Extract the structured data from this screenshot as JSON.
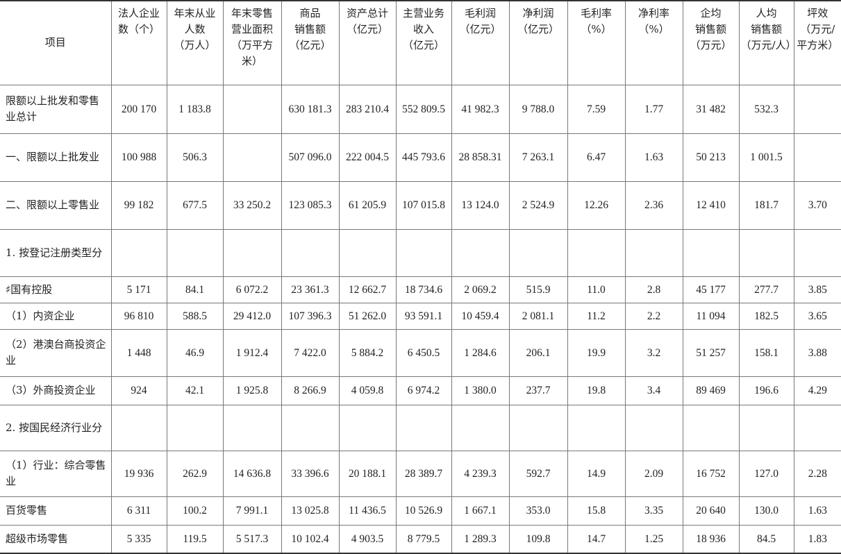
{
  "headers": [
    "项目",
    "法人企业\n数（个）",
    "年末从业\n人数\n（万人）",
    "年末零售\n营业面积\n（万平方\n米）",
    "商品\n销售额\n（亿元）",
    "资产总计\n（亿元）",
    "主营业务\n收入\n（亿元）",
    "毛利润\n（亿元）",
    "净利润\n（亿元）",
    "毛利率\n（%）",
    "净利率\n（%）",
    "企均\n销售额\n（万元）",
    "人均\n销售额\n（万元/人）",
    "坪效\n（万元/\n平方米）"
  ],
  "rows": [
    {
      "label": "限额以上批发和零售业总计",
      "values": [
        "200 170",
        "1 183.8",
        "",
        "630 181.3",
        "283 210.4",
        "552 809.5",
        "41 982.3",
        "9 788.0",
        "7.59",
        "1.77",
        "31 482",
        "532.3",
        ""
      ]
    },
    {
      "label": "一、限额以上批发业",
      "values": [
        "100 988",
        "506.3",
        "",
        "507 096.0",
        "222 004.5",
        "445 793.6",
        "28 858.31",
        "7 263.1",
        "6.47",
        "1.63",
        "50 213",
        "1 001.5",
        ""
      ]
    },
    {
      "label": "二、限额以上零售业",
      "values": [
        "99 182",
        "677.5",
        "33 250.2",
        "123 085.3",
        "61 205.9",
        "107 015.8",
        "13 124.0",
        "2 524.9",
        "12.26",
        "2.36",
        "12 410",
        "181.7",
        "3.70"
      ]
    },
    {
      "label": "1. 按登记注册类型分",
      "values": [
        "",
        "",
        "",
        "",
        "",
        "",
        "",
        "",
        "",
        "",
        "",
        "",
        ""
      ]
    },
    {
      "label": "♯国有控股",
      "values": [
        "5 171",
        "84.1",
        "6 072.2",
        "23 361.3",
        "12 662.7",
        "18 734.6",
        "2 069.2",
        "515.9",
        "11.0",
        "2.8",
        "45 177",
        "277.7",
        "3.85"
      ]
    },
    {
      "label": "（1）内资企业",
      "values": [
        "96 810",
        "588.5",
        "29 412.0",
        "107 396.3",
        "51 262.0",
        "93 591.1",
        "10 459.4",
        "2 081.1",
        "11.2",
        "2.2",
        "11 094",
        "182.5",
        "3.65"
      ]
    },
    {
      "label": "（2）港澳台商投资企业",
      "values": [
        "1 448",
        "46.9",
        "1 912.4",
        "7 422.0",
        "5 884.2",
        "6 450.5",
        "1 284.6",
        "206.1",
        "19.9",
        "3.2",
        "51 257",
        "158.1",
        "3.88"
      ]
    },
    {
      "label": "（3）外商投资企业",
      "values": [
        "924",
        "42.1",
        "1 925.8",
        "8 266.9",
        "4 059.8",
        "6 974.2",
        "1 380.0",
        "237.7",
        "19.8",
        "3.4",
        "89 469",
        "196.6",
        "4.29"
      ]
    },
    {
      "label": "2. 按国民经济行业分",
      "values": [
        "",
        "",
        "",
        "",
        "",
        "",
        "",
        "",
        "",
        "",
        "",
        "",
        ""
      ]
    },
    {
      "label": "（1）行业：综合零售业",
      "values": [
        "19 936",
        "262.9",
        "14 636.8",
        "33 396.6",
        "20 188.1",
        "28 389.7",
        "4 239.3",
        "592.7",
        "14.9",
        "2.09",
        "16 752",
        "127.0",
        "2.28"
      ]
    },
    {
      "label": "百货零售",
      "values": [
        "6 311",
        "100.2",
        "7 991.1",
        "13 025.8",
        "11 436.5",
        "10 526.9",
        "1 667.1",
        "353.0",
        "15.8",
        "3.35",
        "20 640",
        "130.0",
        "1.63"
      ]
    },
    {
      "label": "超级市场零售",
      "values": [
        "5 335",
        "119.5",
        "5 517.3",
        "10 102.4",
        "4 903.5",
        "8 779.5",
        "1 289.3",
        "109.8",
        "14.7",
        "1.25",
        "18 936",
        "84.5",
        "1.83"
      ]
    }
  ]
}
